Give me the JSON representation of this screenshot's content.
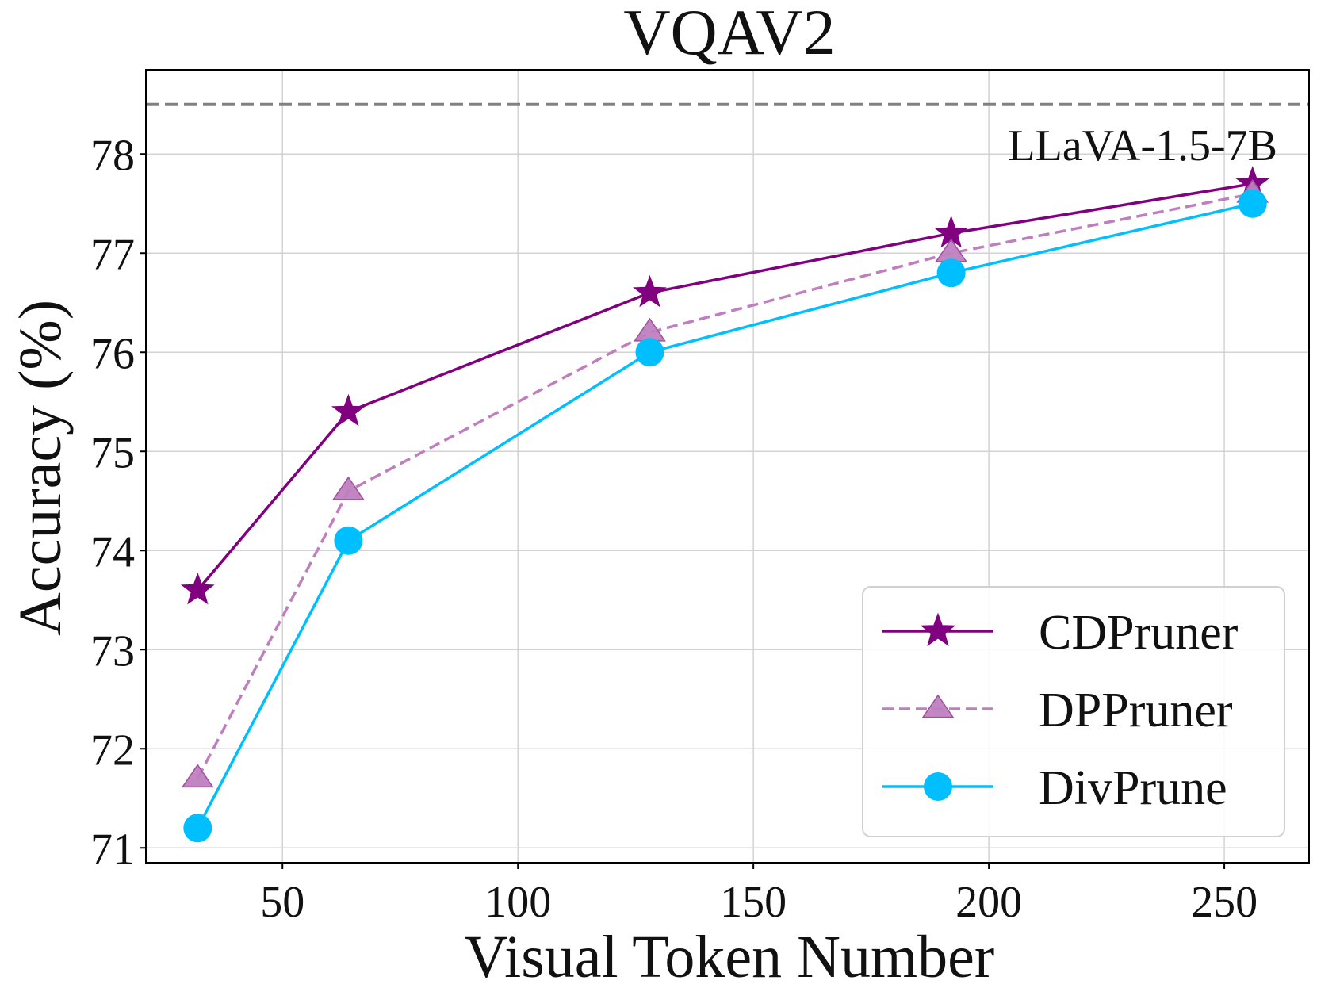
{
  "chart_data": {
    "type": "line",
    "title": "VQAV2",
    "xlabel": "Visual Token Number",
    "ylabel": "Accuracy (%)",
    "x": [
      32,
      64,
      128,
      192,
      256
    ],
    "xlim": [
      21,
      268
    ],
    "ylim": [
      70.85,
      78.85
    ],
    "xticks": [
      50,
      100,
      150,
      200,
      250
    ],
    "yticks": [
      71,
      72,
      73,
      74,
      75,
      76,
      77,
      78
    ],
    "grid": true,
    "legend_position": "bottom-right",
    "baseline": {
      "label": "LLaVA-1.5-7B",
      "value": 78.5,
      "color": "#808080"
    },
    "series": [
      {
        "name": "CDPruner",
        "values": [
          73.6,
          75.4,
          76.6,
          77.2,
          77.7
        ],
        "color": "#800080",
        "marker": "star",
        "line": "solid"
      },
      {
        "name": "DPPruner",
        "values": [
          71.7,
          74.6,
          76.2,
          77.0,
          77.6
        ],
        "color": "#BF7FBF",
        "marker": "triangle",
        "line": "dashed"
      },
      {
        "name": "DivPrune",
        "values": [
          71.2,
          74.1,
          76.0,
          76.8,
          77.5
        ],
        "color": "#00BFFF",
        "marker": "circle",
        "line": "solid"
      }
    ]
  }
}
